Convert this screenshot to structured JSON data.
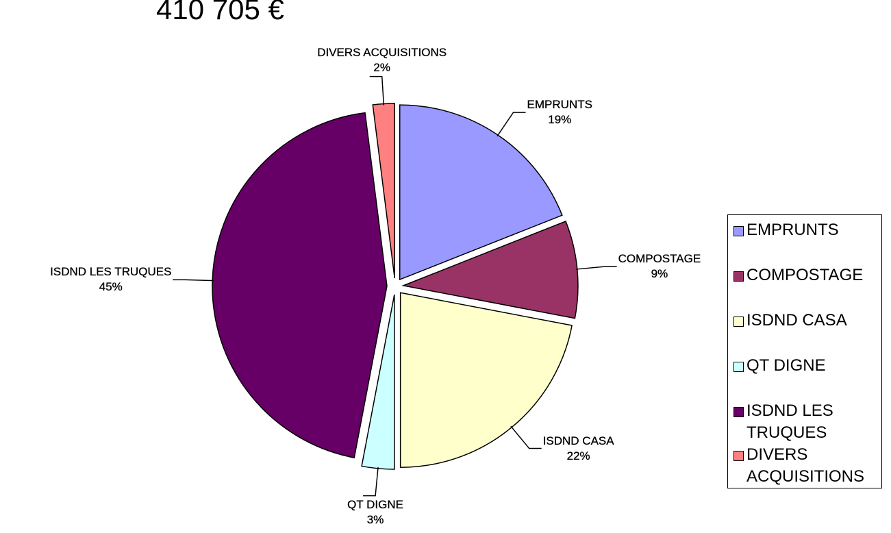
{
  "chart_data": {
    "type": "pie",
    "title": "410 705 €",
    "categories": [
      "EMPRUNTS",
      "COMPOSTAGE",
      "ISDND CASA",
      "QT DIGNE",
      "ISDND LES TRUQUES",
      "DIVERS ACQUISITIONS"
    ],
    "values": [
      19,
      9,
      22,
      3,
      45,
      2
    ],
    "value_labels": [
      "19%",
      "9%",
      "22%",
      "3%",
      "45%",
      "2%"
    ],
    "colors": [
      "#9999ff",
      "#993366",
      "#ffffcc",
      "#ccffff",
      "#660066",
      "#ff8080"
    ],
    "legend": "right"
  }
}
